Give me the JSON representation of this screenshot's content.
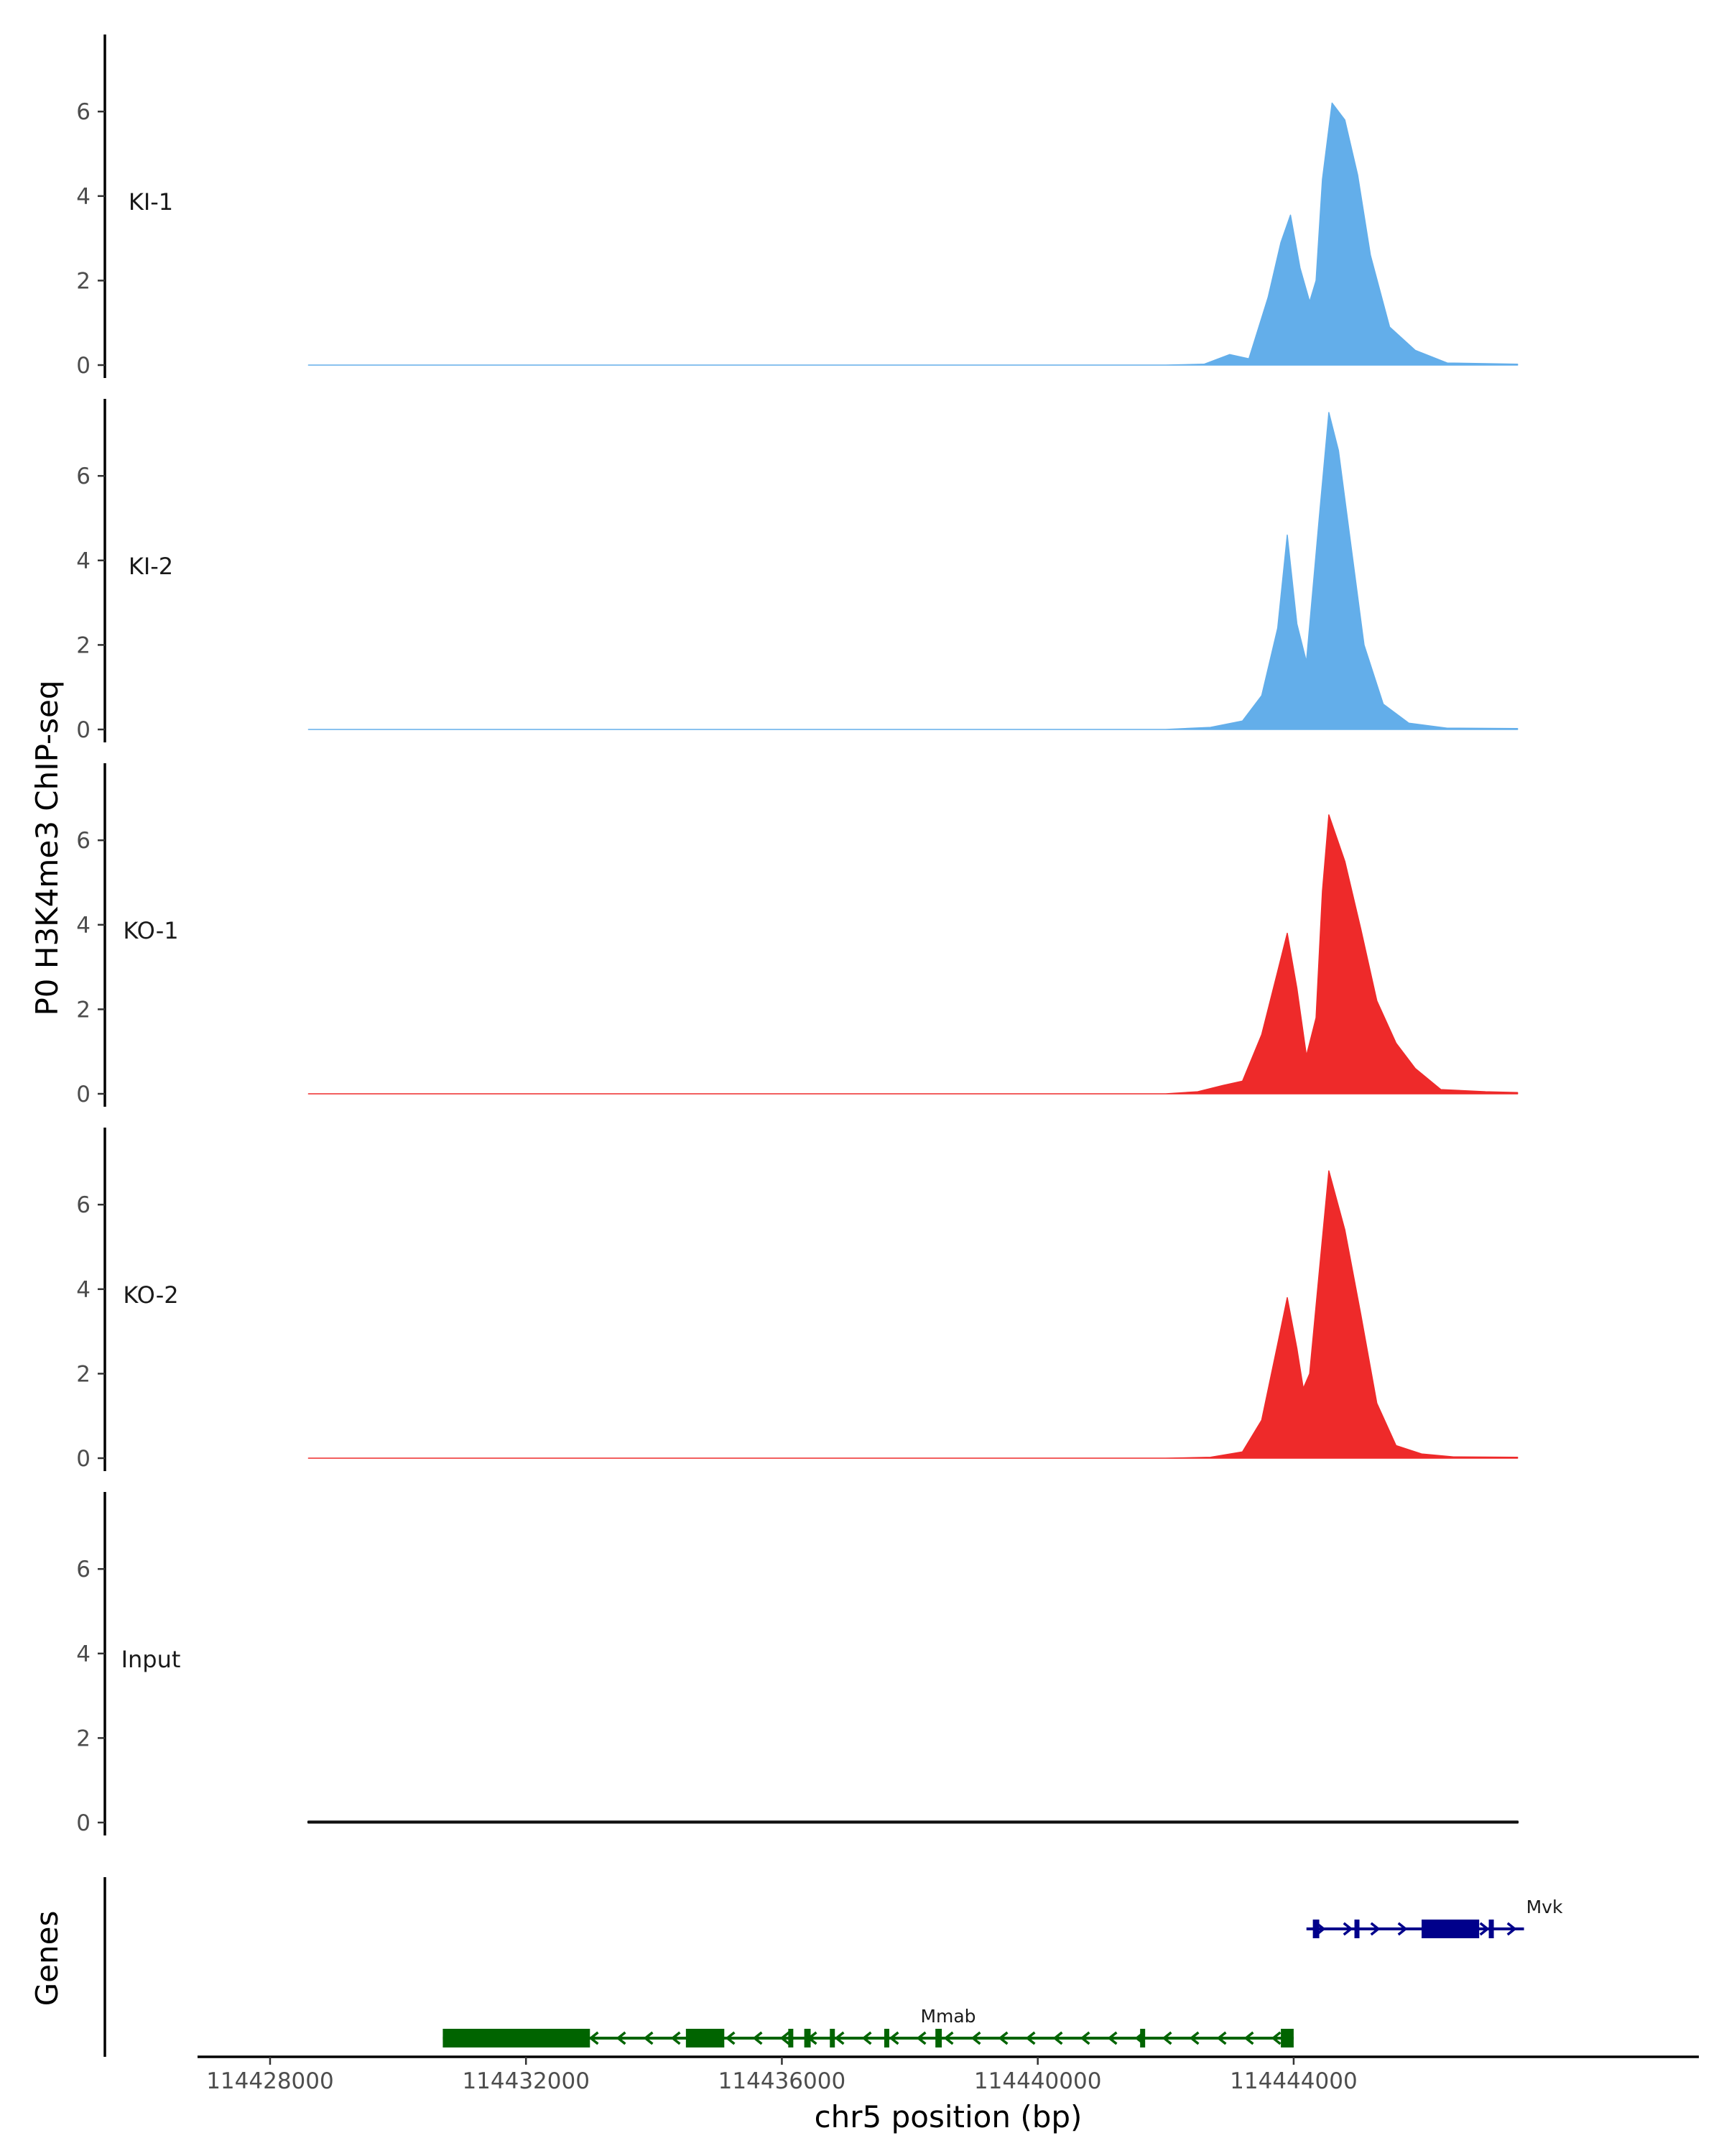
{
  "chart_data": {
    "type": "area",
    "ylabel": "P0 H3K4me3 ChIP-seq",
    "xlabel": "chr5 position (bp)",
    "x_ticks": [
      114428000,
      114432000,
      114436000,
      114440000,
      114444000
    ],
    "x_tick_labels": [
      "114428000",
      "114432000",
      "114436000",
      "114440000",
      "114444000"
    ],
    "xlim": [
      114426900,
      114450300
    ],
    "ylim": [
      0,
      7.8
    ],
    "y_ticks": [
      0,
      2,
      4,
      6
    ],
    "y_tick_labels": [
      "0",
      "2",
      "4",
      "6"
    ],
    "grid": false,
    "colors": {
      "KI": "#63aeea",
      "KO": "#ee2a2a",
      "Input": "#111111",
      "Mmab": "#006400",
      "Mvk": "#00008b"
    },
    "tracks": [
      {
        "label": "KI-1",
        "color": "#63aeea",
        "x": [
          114428600,
          114442000,
          114442600,
          114443000,
          114443300,
          114443600,
          114443800,
          114443950,
          114444100,
          114444250,
          114444350,
          114444450,
          114444600,
          114444800,
          114445000,
          114445200,
          114445500,
          114445900,
          114446400,
          114447500
        ],
        "values": [
          0,
          0,
          0.02,
          0.25,
          0.15,
          1.6,
          2.9,
          3.55,
          2.3,
          1.5,
          2.0,
          4.4,
          6.2,
          5.8,
          4.5,
          2.6,
          0.9,
          0.35,
          0.05,
          0.02
        ]
      },
      {
        "label": "KI-2",
        "color": "#63aeea",
        "x": [
          114428600,
          114442000,
          114442700,
          114443200,
          114443500,
          114443750,
          114443900,
          114444050,
          114444200,
          114444400,
          114444550,
          114444700,
          114444900,
          114445100,
          114445400,
          114445800,
          114446400,
          114447500
        ],
        "values": [
          0,
          0,
          0.05,
          0.2,
          0.8,
          2.4,
          4.6,
          2.5,
          1.6,
          5.0,
          7.5,
          6.6,
          4.3,
          2.0,
          0.6,
          0.15,
          0.03,
          0.02
        ]
      },
      {
        "label": "KO-1",
        "color": "#ee2a2a",
        "x": [
          114428600,
          114442000,
          114442500,
          114442900,
          114443200,
          114443500,
          114443750,
          114443900,
          114444050,
          114444200,
          114444350,
          114444450,
          114444550,
          114444800,
          114445050,
          114445300,
          114445600,
          114445900,
          114446300,
          114447000,
          114447500
        ],
        "values": [
          0,
          0,
          0.05,
          0.2,
          0.3,
          1.4,
          2.9,
          3.8,
          2.5,
          0.9,
          1.8,
          4.8,
          6.6,
          5.5,
          3.9,
          2.2,
          1.2,
          0.6,
          0.1,
          0.05,
          0.03
        ]
      },
      {
        "label": "KO-2",
        "color": "#ee2a2a",
        "x": [
          114428600,
          114442000,
          114442700,
          114443200,
          114443500,
          114443750,
          114443900,
          114444050,
          114444150,
          114444250,
          114444400,
          114444550,
          114444800,
          114445050,
          114445300,
          114445600,
          114446000,
          114446500,
          114447500
        ],
        "values": [
          0,
          0,
          0.02,
          0.15,
          0.9,
          2.7,
          3.8,
          2.6,
          1.65,
          2.0,
          4.4,
          6.8,
          5.4,
          3.4,
          1.3,
          0.3,
          0.1,
          0.03,
          0.02
        ]
      },
      {
        "label": "Input",
        "color": "#111111",
        "x": [
          114428600,
          114447500
        ],
        "values": [
          0.02,
          0.02
        ]
      }
    ],
    "genes_track": {
      "label": "Genes",
      "genes": [
        {
          "name": "Mmab",
          "strand": "-",
          "row": 1,
          "start": 114430700,
          "end": 114444000,
          "exons": [
            [
              114430700,
              114433000
            ],
            [
              114434500,
              114435100
            ],
            [
              114436100,
              114436150
            ],
            [
              114436350,
              114436450
            ],
            [
              114436750,
              114436800
            ],
            [
              114437600,
              114437650
            ],
            [
              114438400,
              114438500
            ],
            [
              114441600,
              114441650
            ],
            [
              114443800,
              114444000
            ]
          ]
        },
        {
          "name": "Mvk",
          "strand": "+",
          "row": 0,
          "start": 114444200,
          "end": 114447600,
          "exons": [
            [
              114444300,
              114444400
            ],
            [
              114444950,
              114445000
            ],
            [
              114446000,
              114446900
            ],
            [
              114447050,
              114447100
            ]
          ]
        }
      ]
    }
  }
}
